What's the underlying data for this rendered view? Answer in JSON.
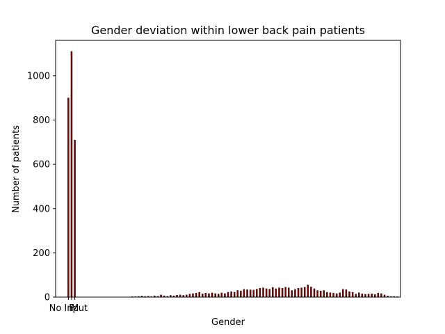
{
  "chart_data": {
    "type": "bar",
    "title": "Gender deviation within lower back pain patients",
    "xlabel": "Gender",
    "ylabel": "Number of patients",
    "ylim": [
      0,
      1160
    ],
    "y_ticks": [
      0,
      200,
      400,
      600,
      800,
      1000
    ],
    "x_ticks": [
      {
        "label": "No Input",
        "x": 0
      },
      {
        "label": "F",
        "x": 1
      },
      {
        "label": "M",
        "x": 2
      }
    ],
    "bar_color": "#800000",
    "bar_edge_color": "#000000",
    "categorical_bars": [
      {
        "label": "No Input",
        "x": 0,
        "value": 900
      },
      {
        "label": "F",
        "x": 1,
        "value": 1110
      },
      {
        "label": "M",
        "x": 2,
        "value": 710
      }
    ],
    "age_bars": {
      "x_start": 20,
      "values": [
        2,
        2,
        3,
        5,
        3,
        4,
        2,
        6,
        4,
        10,
        6,
        4,
        8,
        6,
        9,
        10,
        8,
        10,
        14,
        16,
        18,
        22,
        15,
        18,
        16,
        19,
        16,
        14,
        19,
        16,
        22,
        25,
        22,
        30,
        28,
        35,
        34,
        33,
        32,
        36,
        40,
        42,
        38,
        36,
        44,
        38,
        42,
        40,
        45,
        42,
        30,
        35,
        40,
        42,
        45,
        55,
        46,
        38,
        30,
        28,
        30,
        22,
        20,
        18,
        16,
        20,
        35,
        34,
        25,
        22,
        14,
        20,
        15,
        13,
        14,
        15,
        12,
        18,
        16,
        10,
        5,
        3,
        3,
        2
      ]
    },
    "grid": false
  }
}
